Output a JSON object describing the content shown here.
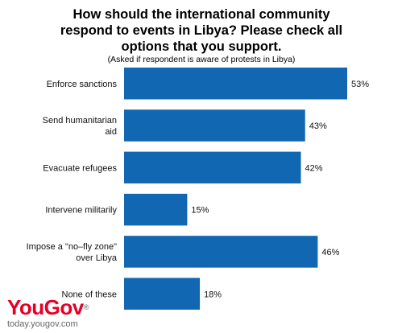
{
  "chart_data": {
    "type": "bar",
    "orientation": "horizontal",
    "title": "How should the international community respond to events in Libya? Please check all options that you support.",
    "subtitle": "(Asked if respondent is aware of protests in Libya)",
    "categories": [
      [
        "Enforce sanctions"
      ],
      [
        "Send humanitarian",
        "aid"
      ],
      [
        "Evacuate refugees"
      ],
      [
        "Intervene militarily"
      ],
      [
        "Impose a \"no–fly zone\"",
        "over Libya"
      ],
      [
        "None of these"
      ]
    ],
    "values": [
      53,
      43,
      42,
      15,
      46,
      18
    ],
    "value_labels": [
      "53%",
      "43%",
      "42%",
      "15%",
      "46%",
      "18%"
    ],
    "xlim": [
      0,
      53
    ],
    "bar_color": "#1167b1",
    "grid": false,
    "legend": "none"
  },
  "branding": {
    "logo": "YouGov",
    "logo_mark": "®",
    "site": "today.yougov.com",
    "logo_color": "#e60026"
  }
}
